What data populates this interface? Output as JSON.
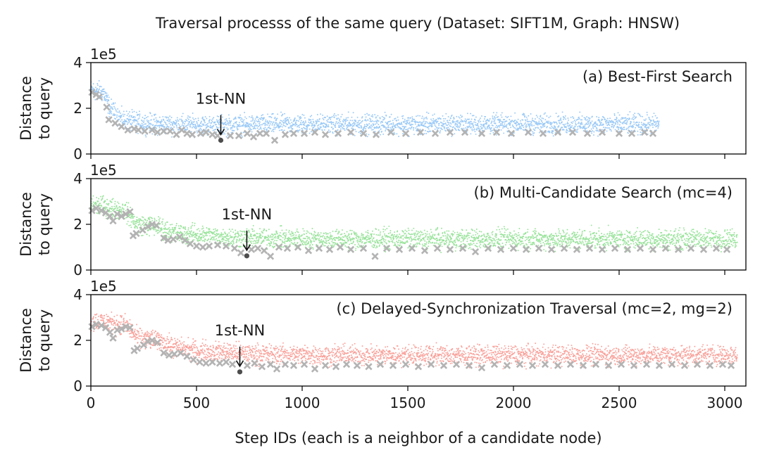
{
  "figure": {
    "title": "Traversal processs of the same query (Dataset: SIFT1M, Graph: HNSW)",
    "xlabel": "Step IDs (each is a neighbor of a candidate node)",
    "ylabel_line1": "Distance",
    "ylabel_line2": "to query",
    "offset_label": "1e5",
    "annotation_label": "1st-NN"
  },
  "chart_data": [
    {
      "type": "scatter",
      "panel_label": "(a) Best-First Search",
      "color": "#99c9f7",
      "candidate_color": "#b3b3b3",
      "nn_color": "#4d4d4d",
      "xlim": [
        0,
        3100
      ],
      "ylim": [
        0,
        4
      ],
      "xticks": [
        0,
        500,
        1000,
        1500,
        2000,
        2500,
        3000
      ],
      "yticks": [
        0,
        2,
        4
      ],
      "y_scale_multiplier": "1e5",
      "total_steps": 2690,
      "first_nn": {
        "x": 615,
        "y": 0.6
      },
      "neighbor_profile": [
        [
          0,
          2.8
        ],
        [
          60,
          2.7
        ],
        [
          90,
          2.0
        ],
        [
          150,
          1.5
        ],
        [
          300,
          1.3
        ],
        [
          600,
          1.25
        ],
        [
          900,
          1.3
        ],
        [
          1500,
          1.3
        ],
        [
          2690,
          1.3
        ]
      ],
      "candidates": [
        {
          "x": 5,
          "y": 2.7
        },
        {
          "x": 25,
          "y": 2.6
        },
        {
          "x": 40,
          "y": 2.5
        },
        {
          "x": 75,
          "y": 2.05
        },
        {
          "x": 85,
          "y": 1.5
        },
        {
          "x": 115,
          "y": 1.35
        },
        {
          "x": 145,
          "y": 1.2
        },
        {
          "x": 175,
          "y": 1.05
        },
        {
          "x": 205,
          "y": 1.1
        },
        {
          "x": 225,
          "y": 1.05
        },
        {
          "x": 255,
          "y": 1.0
        },
        {
          "x": 290,
          "y": 1.05
        },
        {
          "x": 315,
          "y": 0.95
        },
        {
          "x": 345,
          "y": 1.0
        },
        {
          "x": 375,
          "y": 1.0
        },
        {
          "x": 405,
          "y": 0.85
        },
        {
          "x": 430,
          "y": 1.05
        },
        {
          "x": 455,
          "y": 0.9
        },
        {
          "x": 480,
          "y": 0.85
        },
        {
          "x": 520,
          "y": 0.9
        },
        {
          "x": 545,
          "y": 0.95
        },
        {
          "x": 575,
          "y": 0.85
        },
        {
          "x": 600,
          "y": 0.8
        },
        {
          "x": 660,
          "y": 0.8
        },
        {
          "x": 700,
          "y": 0.8
        },
        {
          "x": 740,
          "y": 0.9
        },
        {
          "x": 770,
          "y": 0.75
        },
        {
          "x": 800,
          "y": 0.9
        },
        {
          "x": 830,
          "y": 0.9
        },
        {
          "x": 870,
          "y": 0.6
        },
        {
          "x": 920,
          "y": 0.85
        },
        {
          "x": 960,
          "y": 0.9
        },
        {
          "x": 1010,
          "y": 0.9
        },
        {
          "x": 1060,
          "y": 0.95
        },
        {
          "x": 1110,
          "y": 0.85
        },
        {
          "x": 1170,
          "y": 0.9
        },
        {
          "x": 1230,
          "y": 0.95
        },
        {
          "x": 1290,
          "y": 0.9
        },
        {
          "x": 1350,
          "y": 0.85
        },
        {
          "x": 1420,
          "y": 0.95
        },
        {
          "x": 1490,
          "y": 0.9
        },
        {
          "x": 1560,
          "y": 0.95
        },
        {
          "x": 1630,
          "y": 0.9
        },
        {
          "x": 1700,
          "y": 0.95
        },
        {
          "x": 1770,
          "y": 0.95
        },
        {
          "x": 1850,
          "y": 0.9
        },
        {
          "x": 1920,
          "y": 0.95
        },
        {
          "x": 1990,
          "y": 0.9
        },
        {
          "x": 2070,
          "y": 0.95
        },
        {
          "x": 2140,
          "y": 0.9
        },
        {
          "x": 2210,
          "y": 0.95
        },
        {
          "x": 2280,
          "y": 0.95
        },
        {
          "x": 2350,
          "y": 0.9
        },
        {
          "x": 2420,
          "y": 0.95
        },
        {
          "x": 2500,
          "y": 0.9
        },
        {
          "x": 2560,
          "y": 0.9
        },
        {
          "x": 2620,
          "y": 0.95
        },
        {
          "x": 2660,
          "y": 0.9
        }
      ]
    },
    {
      "type": "scatter",
      "panel_label": "(b) Multi-Candidate Search (mc=4)",
      "color": "#98e39a",
      "candidate_color": "#b3b3b3",
      "nn_color": "#4d4d4d",
      "xlim": [
        0,
        3100
      ],
      "ylim": [
        0,
        4
      ],
      "xticks": [
        0,
        500,
        1000,
        1500,
        2000,
        2500,
        3000
      ],
      "yticks": [
        0,
        2,
        4
      ],
      "y_scale_multiplier": "1e5",
      "total_steps": 3060,
      "first_nn": {
        "x": 738,
        "y": 0.62
      },
      "neighbor_profile": [
        [
          0,
          2.85
        ],
        [
          80,
          2.75
        ],
        [
          160,
          2.6
        ],
        [
          220,
          2.0
        ],
        [
          320,
          1.9
        ],
        [
          400,
          1.6
        ],
        [
          500,
          1.55
        ],
        [
          600,
          1.45
        ],
        [
          800,
          1.4
        ],
        [
          1100,
          1.35
        ],
        [
          1600,
          1.35
        ],
        [
          3060,
          1.35
        ]
      ],
      "candidates": [
        {
          "x": 5,
          "y": 2.6
        },
        {
          "x": 25,
          "y": 2.7
        },
        {
          "x": 50,
          "y": 2.6
        },
        {
          "x": 70,
          "y": 2.5
        },
        {
          "x": 90,
          "y": 2.35
        },
        {
          "x": 105,
          "y": 2.15
        },
        {
          "x": 125,
          "y": 2.45
        },
        {
          "x": 145,
          "y": 2.35
        },
        {
          "x": 165,
          "y": 2.45
        },
        {
          "x": 185,
          "y": 2.55
        },
        {
          "x": 200,
          "y": 1.5
        },
        {
          "x": 215,
          "y": 1.6
        },
        {
          "x": 245,
          "y": 1.75
        },
        {
          "x": 270,
          "y": 1.9
        },
        {
          "x": 290,
          "y": 2.0
        },
        {
          "x": 310,
          "y": 1.95
        },
        {
          "x": 345,
          "y": 1.4
        },
        {
          "x": 365,
          "y": 1.3
        },
        {
          "x": 390,
          "y": 1.35
        },
        {
          "x": 420,
          "y": 1.45
        },
        {
          "x": 445,
          "y": 1.3
        },
        {
          "x": 470,
          "y": 1.15
        },
        {
          "x": 500,
          "y": 1.05
        },
        {
          "x": 530,
          "y": 1.0
        },
        {
          "x": 560,
          "y": 1.05
        },
        {
          "x": 600,
          "y": 1.1
        },
        {
          "x": 640,
          "y": 1.05
        },
        {
          "x": 680,
          "y": 0.95
        },
        {
          "x": 710,
          "y": 0.75
        },
        {
          "x": 760,
          "y": 0.9
        },
        {
          "x": 790,
          "y": 0.95
        },
        {
          "x": 820,
          "y": 0.85
        },
        {
          "x": 850,
          "y": 0.6
        },
        {
          "x": 890,
          "y": 1.0
        },
        {
          "x": 930,
          "y": 0.95
        },
        {
          "x": 980,
          "y": 1.0
        },
        {
          "x": 1030,
          "y": 0.85
        },
        {
          "x": 1080,
          "y": 0.95
        },
        {
          "x": 1130,
          "y": 0.9
        },
        {
          "x": 1180,
          "y": 1.0
        },
        {
          "x": 1230,
          "y": 0.9
        },
        {
          "x": 1290,
          "y": 0.95
        },
        {
          "x": 1345,
          "y": 0.6
        },
        {
          "x": 1400,
          "y": 0.95
        },
        {
          "x": 1460,
          "y": 0.9
        },
        {
          "x": 1520,
          "y": 0.95
        },
        {
          "x": 1580,
          "y": 0.85
        },
        {
          "x": 1640,
          "y": 0.95
        },
        {
          "x": 1700,
          "y": 0.9
        },
        {
          "x": 1760,
          "y": 0.95
        },
        {
          "x": 1820,
          "y": 0.8
        },
        {
          "x": 1880,
          "y": 0.95
        },
        {
          "x": 1940,
          "y": 0.9
        },
        {
          "x": 2000,
          "y": 0.95
        },
        {
          "x": 2060,
          "y": 0.9
        },
        {
          "x": 2120,
          "y": 0.95
        },
        {
          "x": 2180,
          "y": 0.9
        },
        {
          "x": 2240,
          "y": 0.95
        },
        {
          "x": 2300,
          "y": 0.9
        },
        {
          "x": 2360,
          "y": 0.95
        },
        {
          "x": 2420,
          "y": 0.9
        },
        {
          "x": 2480,
          "y": 0.95
        },
        {
          "x": 2540,
          "y": 0.9
        },
        {
          "x": 2600,
          "y": 0.95
        },
        {
          "x": 2660,
          "y": 0.9
        },
        {
          "x": 2720,
          "y": 0.95
        },
        {
          "x": 2780,
          "y": 0.9
        },
        {
          "x": 2840,
          "y": 0.95
        },
        {
          "x": 2900,
          "y": 0.9
        },
        {
          "x": 2960,
          "y": 0.95
        },
        {
          "x": 3010,
          "y": 0.9
        }
      ]
    },
    {
      "type": "scatter",
      "panel_label": "(c) Delayed-Synchronization Traversal (mc=2, mg=2)",
      "color": "#f9a19a",
      "candidate_color": "#b3b3b3",
      "nn_color": "#4d4d4d",
      "xlim": [
        0,
        3100
      ],
      "ylim": [
        0,
        4
      ],
      "xticks": [
        0,
        500,
        1000,
        1500,
        2000,
        2500,
        3000
      ],
      "yticks": [
        0,
        2,
        4
      ],
      "y_scale_multiplier": "1e5",
      "total_steps": 3060,
      "first_nn": {
        "x": 705,
        "y": 0.62
      },
      "neighbor_profile": [
        [
          0,
          2.85
        ],
        [
          80,
          2.8
        ],
        [
          170,
          2.65
        ],
        [
          220,
          2.1
        ],
        [
          320,
          2.0
        ],
        [
          400,
          1.7
        ],
        [
          500,
          1.55
        ],
        [
          600,
          1.5
        ],
        [
          800,
          1.4
        ],
        [
          1100,
          1.35
        ],
        [
          1600,
          1.35
        ],
        [
          3060,
          1.35
        ]
      ],
      "candidates": [
        {
          "x": 5,
          "y": 2.6
        },
        {
          "x": 25,
          "y": 2.7
        },
        {
          "x": 50,
          "y": 2.65
        },
        {
          "x": 70,
          "y": 2.55
        },
        {
          "x": 90,
          "y": 2.35
        },
        {
          "x": 105,
          "y": 2.1
        },
        {
          "x": 125,
          "y": 2.45
        },
        {
          "x": 145,
          "y": 2.5
        },
        {
          "x": 165,
          "y": 2.6
        },
        {
          "x": 185,
          "y": 2.55
        },
        {
          "x": 205,
          "y": 1.55
        },
        {
          "x": 220,
          "y": 1.65
        },
        {
          "x": 250,
          "y": 1.8
        },
        {
          "x": 270,
          "y": 1.95
        },
        {
          "x": 290,
          "y": 2.0
        },
        {
          "x": 315,
          "y": 1.9
        },
        {
          "x": 345,
          "y": 1.45
        },
        {
          "x": 370,
          "y": 1.35
        },
        {
          "x": 395,
          "y": 1.4
        },
        {
          "x": 425,
          "y": 1.45
        },
        {
          "x": 455,
          "y": 1.3
        },
        {
          "x": 485,
          "y": 1.15
        },
        {
          "x": 515,
          "y": 1.05
        },
        {
          "x": 545,
          "y": 1.0
        },
        {
          "x": 575,
          "y": 1.05
        },
        {
          "x": 610,
          "y": 1.0
        },
        {
          "x": 640,
          "y": 1.05
        },
        {
          "x": 670,
          "y": 0.95
        },
        {
          "x": 740,
          "y": 0.9
        },
        {
          "x": 775,
          "y": 1.0
        },
        {
          "x": 810,
          "y": 0.85
        },
        {
          "x": 850,
          "y": 0.95
        },
        {
          "x": 880,
          "y": 0.75
        },
        {
          "x": 920,
          "y": 0.95
        },
        {
          "x": 960,
          "y": 0.9
        },
        {
          "x": 1010,
          "y": 0.95
        },
        {
          "x": 1060,
          "y": 0.75
        },
        {
          "x": 1110,
          "y": 0.9
        },
        {
          "x": 1160,
          "y": 0.85
        },
        {
          "x": 1210,
          "y": 0.95
        },
        {
          "x": 1260,
          "y": 0.9
        },
        {
          "x": 1315,
          "y": 0.85
        },
        {
          "x": 1370,
          "y": 0.95
        },
        {
          "x": 1430,
          "y": 0.9
        },
        {
          "x": 1490,
          "y": 0.95
        },
        {
          "x": 1550,
          "y": 0.85
        },
        {
          "x": 1610,
          "y": 0.95
        },
        {
          "x": 1670,
          "y": 0.9
        },
        {
          "x": 1730,
          "y": 0.95
        },
        {
          "x": 1790,
          "y": 0.9
        },
        {
          "x": 1850,
          "y": 0.8
        },
        {
          "x": 1910,
          "y": 0.95
        },
        {
          "x": 1970,
          "y": 0.9
        },
        {
          "x": 2030,
          "y": 0.95
        },
        {
          "x": 2090,
          "y": 0.9
        },
        {
          "x": 2150,
          "y": 0.95
        },
        {
          "x": 2210,
          "y": 0.9
        },
        {
          "x": 2270,
          "y": 0.95
        },
        {
          "x": 2330,
          "y": 0.9
        },
        {
          "x": 2390,
          "y": 0.95
        },
        {
          "x": 2450,
          "y": 0.9
        },
        {
          "x": 2510,
          "y": 0.95
        },
        {
          "x": 2570,
          "y": 0.9
        },
        {
          "x": 2630,
          "y": 0.95
        },
        {
          "x": 2690,
          "y": 0.9
        },
        {
          "x": 2750,
          "y": 0.95
        },
        {
          "x": 2810,
          "y": 0.9
        },
        {
          "x": 2870,
          "y": 0.95
        },
        {
          "x": 2930,
          "y": 0.9
        },
        {
          "x": 2990,
          "y": 0.95
        },
        {
          "x": 3030,
          "y": 0.9
        }
      ]
    }
  ]
}
